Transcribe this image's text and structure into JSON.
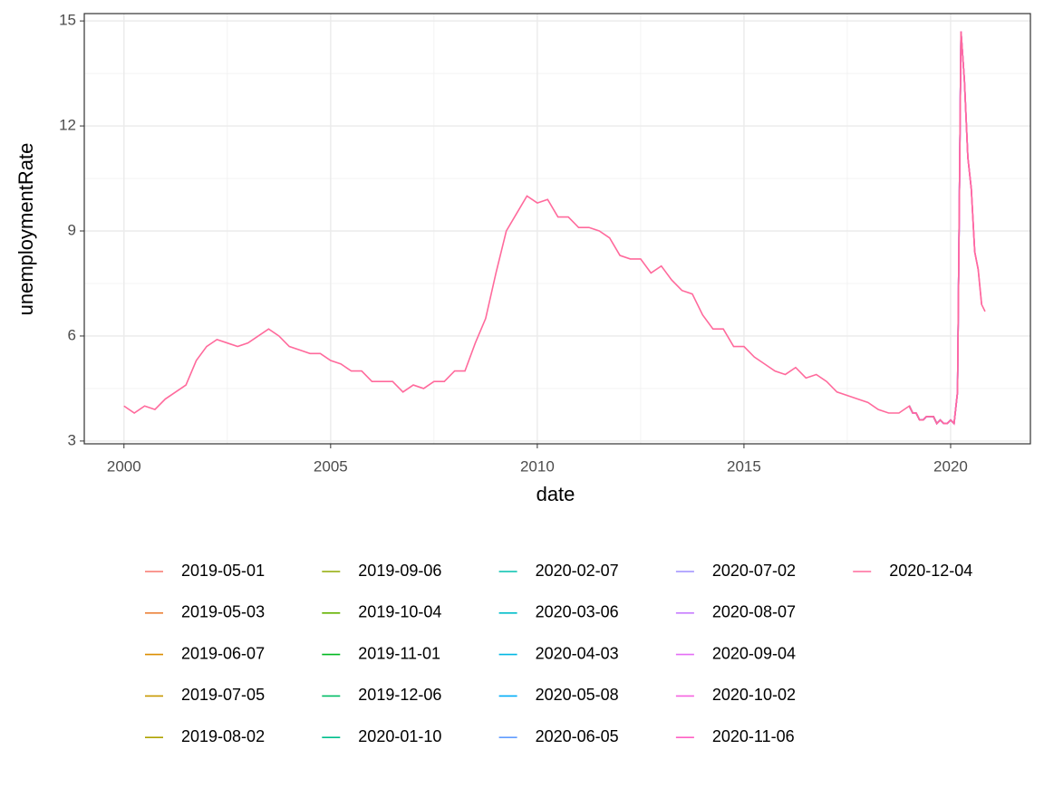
{
  "chart_data": {
    "type": "line",
    "x_label": "date",
    "y_label": "unemploymentRate",
    "xlim": [
      1999.04,
      2021.93
    ],
    "xticks": [
      2000,
      2005,
      2010,
      2015,
      2020
    ],
    "ylim": [
      2.92,
      15.21
    ],
    "yticks": [
      3,
      6,
      9,
      12,
      15
    ],
    "grid": true,
    "legend": "bottom",
    "series": [
      {
        "name": "2019-05-01",
        "color": "#F8766D",
        "x": [
          "2019-01",
          "2019-02",
          "2019-03",
          "2019-04"
        ],
        "values": [
          4.0,
          3.8,
          3.8,
          3.6
        ]
      },
      {
        "name": "2019-05-03",
        "color": "#EC8239",
        "x": [
          "2019-01",
          "2019-02",
          "2019-03",
          "2019-04"
        ],
        "values": [
          4.0,
          3.8,
          3.8,
          3.6
        ]
      },
      {
        "name": "2019-06-07",
        "color": "#DB8E00",
        "x": [
          "2019-01",
          "2019-02",
          "2019-03",
          "2019-04",
          "2019-05"
        ],
        "values": [
          4.0,
          3.8,
          3.8,
          3.6,
          3.6
        ]
      },
      {
        "name": "2019-07-05",
        "color": "#C79800",
        "x": [
          "2019-01",
          "2019-02",
          "2019-03",
          "2019-04",
          "2019-05",
          "2019-06"
        ],
        "values": [
          4.0,
          3.8,
          3.8,
          3.6,
          3.6,
          3.7
        ]
      },
      {
        "name": "2019-08-02",
        "color": "#AEA200",
        "x": [
          "2019-01",
          "2019-02",
          "2019-03",
          "2019-04",
          "2019-05",
          "2019-06",
          "2019-07"
        ],
        "values": [
          4.0,
          3.8,
          3.8,
          3.6,
          3.6,
          3.7,
          3.7
        ]
      },
      {
        "name": "2019-09-06",
        "color": "#8FAA00",
        "x": [
          "2019-01",
          "2019-02",
          "2019-03",
          "2019-04",
          "2019-05",
          "2019-06",
          "2019-07",
          "2019-08"
        ],
        "values": [
          4.0,
          3.8,
          3.8,
          3.6,
          3.6,
          3.7,
          3.7,
          3.7
        ]
      },
      {
        "name": "2019-10-04",
        "color": "#64B200",
        "x": [
          "2019-01",
          "2019-02",
          "2019-03",
          "2019-04",
          "2019-05",
          "2019-06",
          "2019-07",
          "2019-08",
          "2019-09"
        ],
        "values": [
          4.0,
          3.8,
          3.8,
          3.6,
          3.6,
          3.7,
          3.7,
          3.7,
          3.5
        ]
      },
      {
        "name": "2019-11-01",
        "color": "#00B81F",
        "x": [
          "2019-01",
          "2019-02",
          "2019-03",
          "2019-04",
          "2019-05",
          "2019-06",
          "2019-07",
          "2019-08",
          "2019-09",
          "2019-10"
        ],
        "values": [
          4.0,
          3.8,
          3.8,
          3.6,
          3.6,
          3.7,
          3.7,
          3.7,
          3.5,
          3.6
        ]
      },
      {
        "name": "2019-12-06",
        "color": "#00BC65",
        "x": [
          "2019-01",
          "2019-02",
          "2019-03",
          "2019-04",
          "2019-05",
          "2019-06",
          "2019-07",
          "2019-08",
          "2019-09",
          "2019-10",
          "2019-11"
        ],
        "values": [
          4.0,
          3.8,
          3.8,
          3.6,
          3.6,
          3.7,
          3.7,
          3.7,
          3.5,
          3.6,
          3.5
        ]
      },
      {
        "name": "2020-01-10",
        "color": "#00BF8C",
        "x": [
          "2019-01",
          "2019-02",
          "2019-03",
          "2019-04",
          "2019-05",
          "2019-06",
          "2019-07",
          "2019-08",
          "2019-09",
          "2019-10",
          "2019-11",
          "2019-12"
        ],
        "values": [
          4.0,
          3.8,
          3.8,
          3.6,
          3.6,
          3.7,
          3.7,
          3.7,
          3.5,
          3.6,
          3.5,
          3.5
        ]
      },
      {
        "name": "2020-02-07",
        "color": "#00C0AD",
        "x": [
          "2019-01",
          "2019-02",
          "2019-03",
          "2019-04",
          "2019-05",
          "2019-06",
          "2019-07",
          "2019-08",
          "2019-09",
          "2019-10",
          "2019-11",
          "2019-12",
          "2020-01"
        ],
        "values": [
          4.0,
          3.8,
          3.8,
          3.6,
          3.6,
          3.7,
          3.7,
          3.7,
          3.5,
          3.6,
          3.5,
          3.5,
          3.6
        ]
      },
      {
        "name": "2020-03-06",
        "color": "#00BDCA",
        "x": [
          "2019-01",
          "2019-02",
          "2019-03",
          "2019-04",
          "2019-05",
          "2019-06",
          "2019-07",
          "2019-08",
          "2019-09",
          "2019-10",
          "2019-11",
          "2019-12",
          "2020-01",
          "2020-02"
        ],
        "values": [
          4.0,
          3.8,
          3.8,
          3.6,
          3.6,
          3.7,
          3.7,
          3.7,
          3.5,
          3.6,
          3.5,
          3.5,
          3.6,
          3.5
        ]
      },
      {
        "name": "2020-04-03",
        "color": "#00B7E3",
        "x": [
          "2019-01",
          "2019-02",
          "2019-03",
          "2019-04",
          "2019-05",
          "2019-06",
          "2019-07",
          "2019-08",
          "2019-09",
          "2019-10",
          "2019-11",
          "2019-12",
          "2020-01",
          "2020-02",
          "2020-03"
        ],
        "values": [
          4.0,
          3.8,
          3.8,
          3.6,
          3.6,
          3.7,
          3.7,
          3.7,
          3.5,
          3.6,
          3.5,
          3.5,
          3.6,
          3.5,
          4.4
        ]
      },
      {
        "name": "2020-05-08",
        "color": "#00ADF8",
        "x": [
          "2019-01",
          "2019-02",
          "2019-03",
          "2019-04",
          "2019-05",
          "2019-06",
          "2019-07",
          "2019-08",
          "2019-09",
          "2019-10",
          "2019-11",
          "2019-12",
          "2020-01",
          "2020-02",
          "2020-03",
          "2020-04"
        ],
        "values": [
          4.0,
          3.8,
          3.8,
          3.6,
          3.6,
          3.7,
          3.7,
          3.7,
          3.5,
          3.6,
          3.5,
          3.5,
          3.6,
          3.5,
          4.4,
          14.7
        ]
      },
      {
        "name": "2020-06-05",
        "color": "#619CFF",
        "x": [
          "2019-01",
          "2019-02",
          "2019-03",
          "2019-04",
          "2019-05",
          "2019-06",
          "2019-07",
          "2019-08",
          "2019-09",
          "2019-10",
          "2019-11",
          "2019-12",
          "2020-01",
          "2020-02",
          "2020-03",
          "2020-04",
          "2020-05"
        ],
        "values": [
          4.0,
          3.8,
          3.8,
          3.6,
          3.6,
          3.7,
          3.7,
          3.7,
          3.5,
          3.6,
          3.5,
          3.5,
          3.6,
          3.5,
          4.4,
          14.7,
          13.3
        ]
      },
      {
        "name": "2020-07-02",
        "color": "#9D8EFF",
        "x": [
          "2019-01",
          "2019-02",
          "2019-03",
          "2019-04",
          "2019-05",
          "2019-06",
          "2019-07",
          "2019-08",
          "2019-09",
          "2019-10",
          "2019-11",
          "2019-12",
          "2020-01",
          "2020-02",
          "2020-03",
          "2020-04",
          "2020-05",
          "2020-06"
        ],
        "values": [
          4.0,
          3.8,
          3.8,
          3.6,
          3.6,
          3.7,
          3.7,
          3.7,
          3.5,
          3.6,
          3.5,
          3.5,
          3.6,
          3.5,
          4.4,
          14.7,
          13.3,
          11.1
        ]
      },
      {
        "name": "2020-08-07",
        "color": "#C77CFF",
        "x": [
          "2019-01",
          "2019-02",
          "2019-03",
          "2019-04",
          "2019-05",
          "2019-06",
          "2019-07",
          "2019-08",
          "2019-09",
          "2019-10",
          "2019-11",
          "2019-12",
          "2020-01",
          "2020-02",
          "2020-03",
          "2020-04",
          "2020-05",
          "2020-06",
          "2020-07"
        ],
        "values": [
          4.0,
          3.8,
          3.8,
          3.6,
          3.6,
          3.7,
          3.7,
          3.7,
          3.5,
          3.6,
          3.5,
          3.5,
          3.6,
          3.5,
          4.4,
          14.7,
          13.3,
          11.1,
          10.2
        ]
      },
      {
        "name": "2020-09-04",
        "color": "#E46DF5",
        "x": [
          "2019-01",
          "2019-02",
          "2019-03",
          "2019-04",
          "2019-05",
          "2019-06",
          "2019-07",
          "2019-08",
          "2019-09",
          "2019-10",
          "2019-11",
          "2019-12",
          "2020-01",
          "2020-02",
          "2020-03",
          "2020-04",
          "2020-05",
          "2020-06",
          "2020-07",
          "2020-08"
        ],
        "values": [
          4.0,
          3.8,
          3.8,
          3.6,
          3.6,
          3.7,
          3.7,
          3.7,
          3.5,
          3.6,
          3.5,
          3.5,
          3.6,
          3.5,
          4.4,
          14.7,
          13.3,
          11.1,
          10.2,
          8.4
        ]
      },
      {
        "name": "2020-10-02",
        "color": "#F663E0",
        "x": [
          "2019-01",
          "2019-02",
          "2019-03",
          "2019-04",
          "2019-05",
          "2019-06",
          "2019-07",
          "2019-08",
          "2019-09",
          "2019-10",
          "2019-11",
          "2019-12",
          "2020-01",
          "2020-02",
          "2020-03",
          "2020-04",
          "2020-05",
          "2020-06",
          "2020-07",
          "2020-08",
          "2020-09"
        ],
        "values": [
          4.0,
          3.8,
          3.8,
          3.6,
          3.6,
          3.7,
          3.7,
          3.7,
          3.5,
          3.6,
          3.5,
          3.5,
          3.6,
          3.5,
          4.4,
          14.7,
          13.3,
          11.1,
          10.2,
          8.4,
          7.9
        ]
      },
      {
        "name": "2020-11-06",
        "color": "#FF61C4",
        "x": [
          "2019-01",
          "2019-02",
          "2019-03",
          "2019-04",
          "2019-05",
          "2019-06",
          "2019-07",
          "2019-08",
          "2019-09",
          "2019-10",
          "2019-11",
          "2019-12",
          "2020-01",
          "2020-02",
          "2020-03",
          "2020-04",
          "2020-05",
          "2020-06",
          "2020-07",
          "2020-08",
          "2020-09",
          "2020-10"
        ],
        "values": [
          4.0,
          3.8,
          3.8,
          3.6,
          3.6,
          3.7,
          3.7,
          3.7,
          3.5,
          3.6,
          3.5,
          3.5,
          3.6,
          3.5,
          4.4,
          14.7,
          13.3,
          11.1,
          10.2,
          8.4,
          7.9,
          6.9
        ]
      },
      {
        "name": "2020-12-04",
        "color": "#FF6A9C",
        "x": [
          "2000-01",
          "2000-04",
          "2000-07",
          "2000-10",
          "2001-01",
          "2001-04",
          "2001-07",
          "2001-10",
          "2002-01",
          "2002-04",
          "2002-07",
          "2002-10",
          "2003-01",
          "2003-04",
          "2003-07",
          "2003-10",
          "2004-01",
          "2004-04",
          "2004-07",
          "2004-10",
          "2005-01",
          "2005-04",
          "2005-07",
          "2005-10",
          "2006-01",
          "2006-04",
          "2006-07",
          "2006-10",
          "2007-01",
          "2007-04",
          "2007-07",
          "2007-10",
          "2008-01",
          "2008-04",
          "2008-07",
          "2008-10",
          "2009-01",
          "2009-04",
          "2009-07",
          "2009-10",
          "2010-01",
          "2010-04",
          "2010-07",
          "2010-10",
          "2011-01",
          "2011-04",
          "2011-07",
          "2011-10",
          "2012-01",
          "2012-04",
          "2012-07",
          "2012-10",
          "2013-01",
          "2013-04",
          "2013-07",
          "2013-10",
          "2014-01",
          "2014-04",
          "2014-07",
          "2014-10",
          "2015-01",
          "2015-04",
          "2015-07",
          "2015-10",
          "2016-01",
          "2016-04",
          "2016-07",
          "2016-10",
          "2017-01",
          "2017-04",
          "2017-07",
          "2017-10",
          "2018-01",
          "2018-04",
          "2018-07",
          "2018-10",
          "2019-01",
          "2019-02",
          "2019-03",
          "2019-04",
          "2019-05",
          "2019-06",
          "2019-07",
          "2019-08",
          "2019-09",
          "2019-10",
          "2019-11",
          "2019-12",
          "2020-01",
          "2020-02",
          "2020-03",
          "2020-04",
          "2020-05",
          "2020-06",
          "2020-07",
          "2020-08",
          "2020-09",
          "2020-10",
          "2020-11"
        ],
        "values": [
          4.0,
          3.8,
          4.0,
          3.9,
          4.2,
          4.4,
          4.6,
          5.3,
          5.7,
          5.9,
          5.8,
          5.7,
          5.8,
          6.0,
          6.2,
          6.0,
          5.7,
          5.6,
          5.5,
          5.5,
          5.3,
          5.2,
          5.0,
          5.0,
          4.7,
          4.7,
          4.7,
          4.4,
          4.6,
          4.5,
          4.7,
          4.7,
          5.0,
          5.0,
          5.8,
          6.5,
          7.8,
          9.0,
          9.5,
          10.0,
          9.8,
          9.9,
          9.4,
          9.4,
          9.1,
          9.1,
          9.0,
          8.8,
          8.3,
          8.2,
          8.2,
          7.8,
          8.0,
          7.6,
          7.3,
          7.2,
          6.6,
          6.2,
          6.2,
          5.7,
          5.7,
          5.4,
          5.2,
          5.0,
          4.9,
          5.1,
          4.8,
          4.9,
          4.7,
          4.4,
          4.3,
          4.2,
          4.1,
          3.9,
          3.8,
          3.8,
          4.0,
          3.8,
          3.8,
          3.6,
          3.6,
          3.7,
          3.7,
          3.7,
          3.5,
          3.6,
          3.5,
          3.5,
          3.6,
          3.5,
          4.4,
          14.7,
          13.3,
          11.1,
          10.2,
          8.4,
          7.9,
          6.9,
          6.7
        ]
      }
    ]
  }
}
